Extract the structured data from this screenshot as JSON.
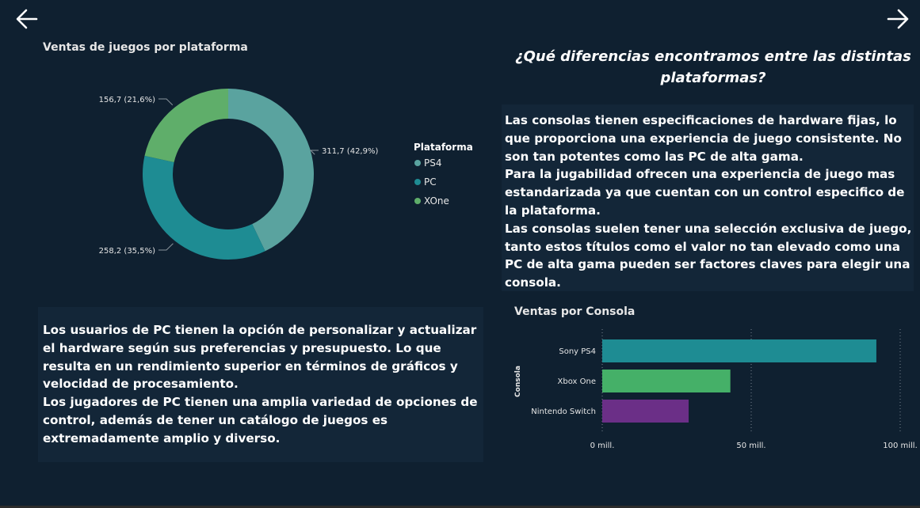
{
  "nav": {
    "back_icon": "arrow-left-icon",
    "forward_icon": "arrow-right-icon"
  },
  "question_title": "¿Qué diferencias encontramos entre las distintas plataformas?",
  "console_text": [
    "Las consolas tienen especificaciones de hardware fijas, lo que proporciona una experiencia de juego consistente. No son tan potentes como las PC de alta gama.",
    "Para la jugabilidad ofrecen una experiencia de juego mas estandarizada ya que cuentan con un control especifico de la plataforma.",
    "Las consolas suelen tener una selección exclusiva de juego, tanto estos títulos como el valor no tan elevado como una PC de alta gama pueden ser factores claves para elegir una consola."
  ],
  "pc_text": [
    "Los usuarios de PC tienen la opción de personalizar y actualizar el hardware según sus preferencias y presupuesto. Lo que resulta en un rendimiento superior en términos de gráficos y velocidad de procesamiento.",
    "Los jugadores de PC tienen una amplia variedad de opciones de control, además  de tener un catálogo de juegos  es extremadamente amplio y diverso."
  ],
  "chart_data": [
    {
      "type": "pie",
      "title": "Ventas de juegos por plataforma",
      "legend_title": "Plataforma",
      "legend_position": "right",
      "series": [
        {
          "name": "PS4",
          "value": 311.7,
          "label": "311,7 (42,9%)",
          "color": "#5aa39f"
        },
        {
          "name": "PC",
          "value": 258.2,
          "label": "258,2 (35,5%)",
          "color": "#1e8c93"
        },
        {
          "name": "XOne",
          "value": 156.7,
          "label": "156,7 (21,6%)",
          "color": "#5fae6a"
        }
      ]
    },
    {
      "type": "bar",
      "orientation": "horizontal",
      "title": "Ventas por Consola",
      "ylabel": "Consola",
      "categories": [
        "Sony PS4",
        "Xbox One",
        "Nintendo Switch"
      ],
      "values": [
        92,
        43,
        29
      ],
      "colors": [
        "#1e8c93",
        "#45b068",
        "#6b2f87"
      ],
      "xlim": [
        0,
        100
      ],
      "xticks": [
        0,
        50,
        100
      ],
      "xtick_labels": [
        "0 mill.",
        "50 mill.",
        "100 mill."
      ],
      "grid": true
    }
  ]
}
